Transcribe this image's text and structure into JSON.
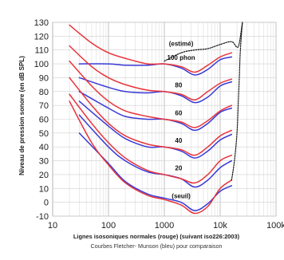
{
  "chart_data": {
    "type": "line",
    "xscale": "log",
    "xlim": [
      10,
      100000
    ],
    "ylim": [
      -10,
      130
    ],
    "grid": true,
    "xticks": [
      "10",
      "100",
      "1000",
      "10k",
      "100k"
    ],
    "yticks": [
      "-10",
      "0",
      "10",
      "20",
      "30",
      "40",
      "50",
      "60",
      "70",
      "80",
      "90",
      "100",
      "110",
      "120",
      "130"
    ],
    "ylabel": "Niveau de pression sonore (en dB SPL)",
    "xlabel": "Lignes isosoniques normales (rouge) (suivant iso226:2003)",
    "subtitle": "Courbes Fletcher- Munson (bleu) pour comparaison",
    "colors": {
      "iso226": "#e8333a",
      "fletcher_munson": "#3a3ad8",
      "estimated": "#111111"
    },
    "curve_labels": [
      {
        "text": "(estimé)",
        "x": 2000,
        "y": 113
      },
      {
        "text": "100 phon",
        "x": 2000,
        "y": 103
      },
      {
        "text": "80",
        "x": 1800,
        "y": 83
      },
      {
        "text": "60",
        "x": 1800,
        "y": 63
      },
      {
        "text": "40",
        "x": 1800,
        "y": 43
      },
      {
        "text": "20",
        "x": 1800,
        "y": 23
      },
      {
        "text": "(seuil)",
        "x": 2000,
        "y": 3
      }
    ],
    "series": [
      {
        "group": "iso226",
        "x": [
          20,
          50,
          100,
          200,
          500,
          1000,
          2000,
          3500,
          6000,
          10000,
          16000
        ],
        "y": [
          128,
          115,
          108,
          104,
          100,
          100,
          98,
          94,
          99,
          105,
          108
        ]
      },
      {
        "group": "iso226",
        "x": [
          20,
          50,
          100,
          200,
          500,
          1000,
          2000,
          3500,
          6000,
          10000,
          16000
        ],
        "y": [
          113,
          98,
          90,
          85,
          81,
          80,
          78,
          74,
          80,
          86,
          89
        ]
      },
      {
        "group": "iso226",
        "x": [
          20,
          50,
          100,
          200,
          500,
          1000,
          2000,
          3500,
          6000,
          10000,
          16000
        ],
        "y": [
          102,
          84,
          73,
          66,
          62,
          60,
          58,
          54,
          59,
          66,
          70
        ]
      },
      {
        "group": "iso226",
        "x": [
          20,
          50,
          100,
          200,
          500,
          1000,
          2000,
          3500,
          6000,
          10000,
          16000
        ],
        "y": [
          90,
          70,
          57,
          48,
          42,
          40,
          38,
          34,
          40,
          48,
          52
        ]
      },
      {
        "group": "iso226",
        "x": [
          20,
          50,
          100,
          200,
          500,
          1000,
          2000,
          3500,
          6000,
          10000,
          16000
        ],
        "y": [
          78,
          57,
          43,
          32,
          23,
          20,
          17,
          14,
          20,
          30,
          34
        ]
      },
      {
        "group": "iso226",
        "x": [
          20,
          50,
          100,
          200,
          500,
          1000,
          2000,
          3500,
          6000,
          10000,
          16000
        ],
        "y": [
          73,
          43,
          27,
          14,
          5,
          2,
          -2,
          -8,
          -3,
          10,
          16
        ]
      },
      {
        "group": "fletcher_munson",
        "x": [
          30,
          100,
          200,
          500,
          1000,
          2000,
          3500,
          6000,
          10000,
          16000
        ],
        "y": [
          100,
          100,
          99,
          99,
          100,
          97,
          92,
          96,
          103,
          105
        ]
      },
      {
        "group": "fletcher_munson",
        "x": [
          30,
          100,
          200,
          500,
          1000,
          2000,
          3500,
          6000,
          10000,
          16000
        ],
        "y": [
          90,
          83,
          80,
          79,
          80,
          77,
          72,
          76,
          84,
          87
        ]
      },
      {
        "group": "fletcher_munson",
        "x": [
          30,
          100,
          200,
          500,
          1000,
          2000,
          3500,
          6000,
          10000,
          16000
        ],
        "y": [
          80,
          68,
          62,
          60,
          60,
          57,
          52,
          57,
          65,
          68
        ]
      },
      {
        "group": "fletcher_munson",
        "x": [
          30,
          100,
          200,
          500,
          1000,
          2000,
          3500,
          6000,
          10000,
          16000
        ],
        "y": [
          73,
          55,
          46,
          40,
          40,
          37,
          32,
          37,
          45,
          49
        ]
      },
      {
        "group": "fletcher_munson",
        "x": [
          30,
          100,
          200,
          500,
          1000,
          2000,
          3500,
          6000,
          10000,
          16000
        ],
        "y": [
          63,
          40,
          30,
          22,
          20,
          17,
          11,
          16,
          25,
          30
        ]
      },
      {
        "group": "fletcher_munson",
        "x": [
          30,
          100,
          200,
          500,
          1000,
          2000,
          3500,
          6000,
          10000,
          16000
        ],
        "y": [
          50,
          28,
          15,
          6,
          3,
          0,
          -6,
          -1,
          8,
          12
        ]
      },
      {
        "group": "estimated",
        "x": [
          1000,
          2000,
          3500,
          6000,
          10000,
          16000,
          20000,
          22000,
          25000
        ],
        "y": [
          102,
          108,
          110,
          111,
          114,
          116,
          112,
          115,
          130
        ]
      },
      {
        "group": "estimated",
        "x": [
          16000,
          18000,
          20000,
          21000,
          22000,
          23000,
          25000
        ],
        "y": [
          16,
          30,
          50,
          70,
          90,
          110,
          130
        ]
      }
    ]
  }
}
